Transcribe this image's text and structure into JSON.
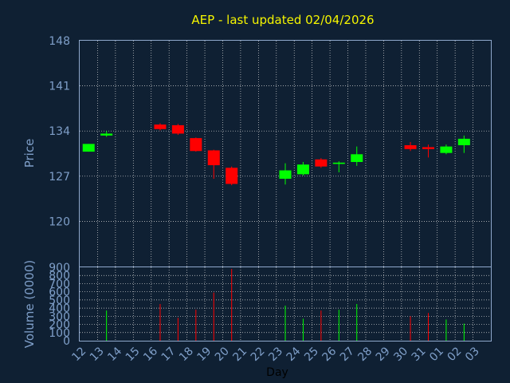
{
  "chart_data": {
    "type": "candlestick",
    "title": "AEP - last updated 02/04/2026",
    "xlabel": "Day",
    "price_ylabel": "Price",
    "volume_ylabel": "Volume (0000)",
    "price_ylim": [
      113,
      148
    ],
    "price_ticks": [
      "148",
      "141",
      "134",
      "127",
      "120"
    ],
    "price_tick_values": [
      148,
      141,
      134,
      127,
      120
    ],
    "volume_ylim": [
      0,
      900
    ],
    "volume_ticks": [
      "900",
      "800",
      "700",
      "600",
      "500",
      "400",
      "300",
      "200",
      "100",
      "0"
    ],
    "volume_tick_values": [
      900,
      800,
      700,
      600,
      500,
      400,
      300,
      200,
      100,
      0
    ],
    "x_labels": [
      "12",
      "13",
      "14",
      "15",
      "16",
      "17",
      "18",
      "19",
      "20",
      "21",
      "22",
      "23",
      "24",
      "25",
      "26",
      "27",
      "28",
      "29",
      "30",
      "31",
      "01",
      "02",
      "03"
    ],
    "grid": true,
    "colors": {
      "background": "#0f2033",
      "plot_border": "#8fa8cc",
      "grid": "#d8d8d8",
      "up": "#00ff00",
      "down": "#ff0000",
      "title": "#f5f500",
      "axis_text": "#7f9fc9",
      "xlabel": "#000000"
    },
    "candles": [
      {
        "day": "12",
        "open": 130.8,
        "close": 132.0,
        "high": 132.0,
        "low": 130.8,
        "volume": 0
      },
      {
        "day": "13",
        "open": 133.3,
        "close": 133.6,
        "high": 134.0,
        "low": 133.1,
        "volume": 370
      },
      {
        "day": "16",
        "open": 135.0,
        "close": 134.3,
        "high": 135.2,
        "low": 134.1,
        "volume": 450
      },
      {
        "day": "17",
        "open": 134.9,
        "close": 133.6,
        "high": 135.1,
        "low": 133.4,
        "volume": 280
      },
      {
        "day": "18",
        "open": 132.9,
        "close": 130.9,
        "high": 133.0,
        "low": 130.8,
        "volume": 380
      },
      {
        "day": "19",
        "open": 131.0,
        "close": 128.7,
        "high": 131.1,
        "low": 126.6,
        "volume": 590
      },
      {
        "day": "20",
        "open": 128.3,
        "close": 125.8,
        "high": 128.5,
        "low": 125.6,
        "volume": 880
      },
      {
        "day": "23",
        "open": 126.6,
        "close": 127.9,
        "high": 129.0,
        "low": 125.7,
        "volume": 430
      },
      {
        "day": "24",
        "open": 127.3,
        "close": 128.8,
        "high": 129.2,
        "low": 127.1,
        "volume": 270
      },
      {
        "day": "25",
        "open": 129.6,
        "close": 128.5,
        "high": 129.8,
        "low": 128.3,
        "volume": 370
      },
      {
        "day": "26",
        "open": 128.9,
        "close": 129.1,
        "high": 129.3,
        "low": 127.6,
        "volume": 380
      },
      {
        "day": "27",
        "open": 129.2,
        "close": 130.4,
        "high": 131.6,
        "low": 128.6,
        "volume": 450
      },
      {
        "day": "30",
        "open": 131.8,
        "close": 131.2,
        "high": 132.3,
        "low": 130.9,
        "volume": 300
      },
      {
        "day": "31",
        "open": 131.5,
        "close": 131.2,
        "high": 131.9,
        "low": 129.9,
        "volume": 340
      },
      {
        "day": "01",
        "open": 130.6,
        "close": 131.6,
        "high": 131.9,
        "low": 130.4,
        "volume": 260
      },
      {
        "day": "02",
        "open": 131.8,
        "close": 132.8,
        "high": 133.3,
        "low": 130.6,
        "volume": 210
      }
    ]
  }
}
